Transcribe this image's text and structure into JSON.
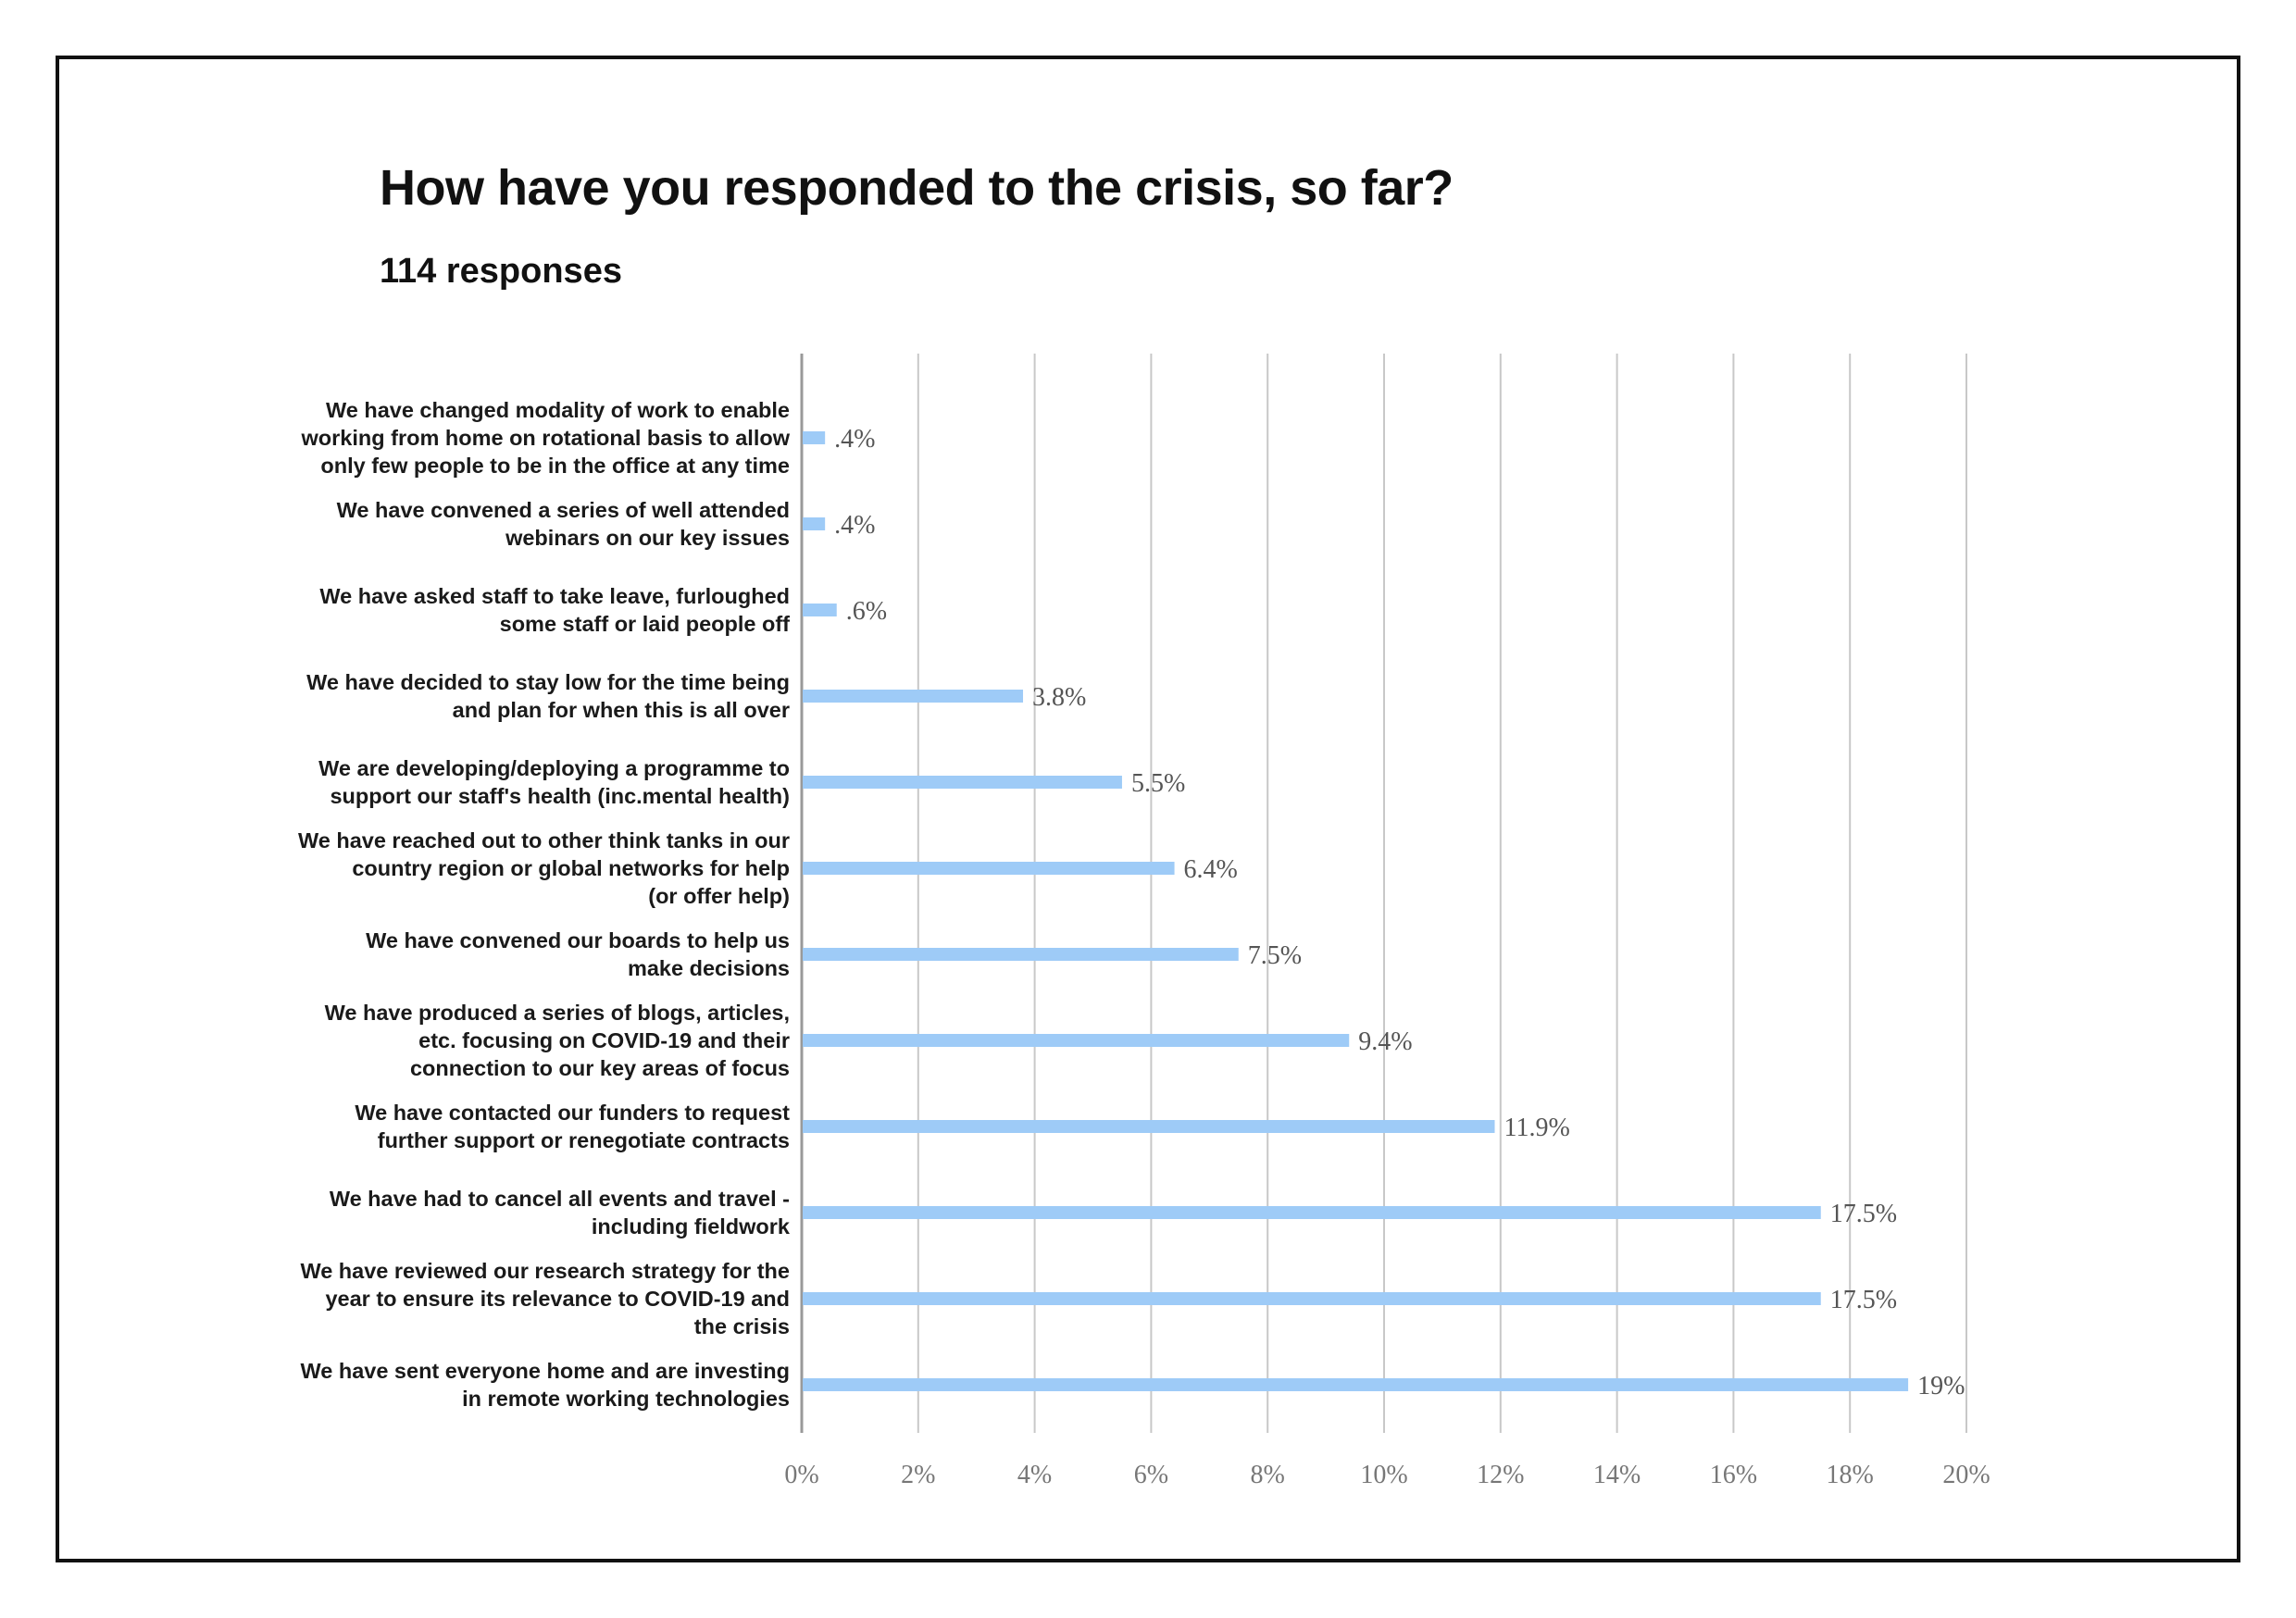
{
  "chart_data": {
    "type": "bar",
    "orientation": "horizontal",
    "title": "How have you responded to the crisis, so far?",
    "subtitle": "114 responses",
    "categories": [
      [
        "We have changed modality of work to enable",
        "working from home on rotational basis to allow",
        "only few people to be in the office at any time"
      ],
      [
        "We have convened a series of well attended",
        "webinars on our key issues"
      ],
      [
        "We have asked staff to take leave, furloughed",
        "some staff or laid people off"
      ],
      [
        "We have decided to stay low for the time being",
        "and plan for when this is all over"
      ],
      [
        "We are developing/deploying a programme to",
        "support our staff's health (inc.mental health)"
      ],
      [
        "We have reached out to other think tanks in our",
        "country region or global networks for help",
        "(or offer help)"
      ],
      [
        "We have convened our boards to help us",
        "make decisions"
      ],
      [
        "We have produced a series of blogs, articles,",
        "etc. focusing on COVID-19 and their",
        "connection to our key areas of focus"
      ],
      [
        "We have contacted our funders to request",
        "further support or renegotiate contracts"
      ],
      [
        "We have had to cancel all events and travel -",
        "including fieldwork"
      ],
      [
        "We have reviewed our research strategy for the",
        "year to ensure its relevance to COVID-19 and",
        "the crisis"
      ],
      [
        "We have sent everyone home and are investing",
        "in remote working technologies"
      ]
    ],
    "values": [
      0.4,
      0.4,
      0.6,
      3.8,
      5.5,
      6.4,
      7.5,
      9.4,
      11.9,
      17.5,
      17.5,
      19
    ],
    "value_labels": [
      ".4%",
      ".4%",
      ".6%",
      "3.8%",
      "5.5%",
      "6.4%",
      "7.5%",
      "9.4%",
      "11.9%",
      "17.5%",
      "17.5%",
      "19%"
    ],
    "x_ticks": [
      "0%",
      "2%",
      "4%",
      "6%",
      "8%",
      "10%",
      "12%",
      "14%",
      "16%",
      "18%",
      "20%"
    ],
    "xlim": [
      0,
      20
    ],
    "grid": "vertical",
    "bar_color": "#9ecbf7",
    "grid_color": "#c8c8c8",
    "axis_color": "#999999"
  }
}
